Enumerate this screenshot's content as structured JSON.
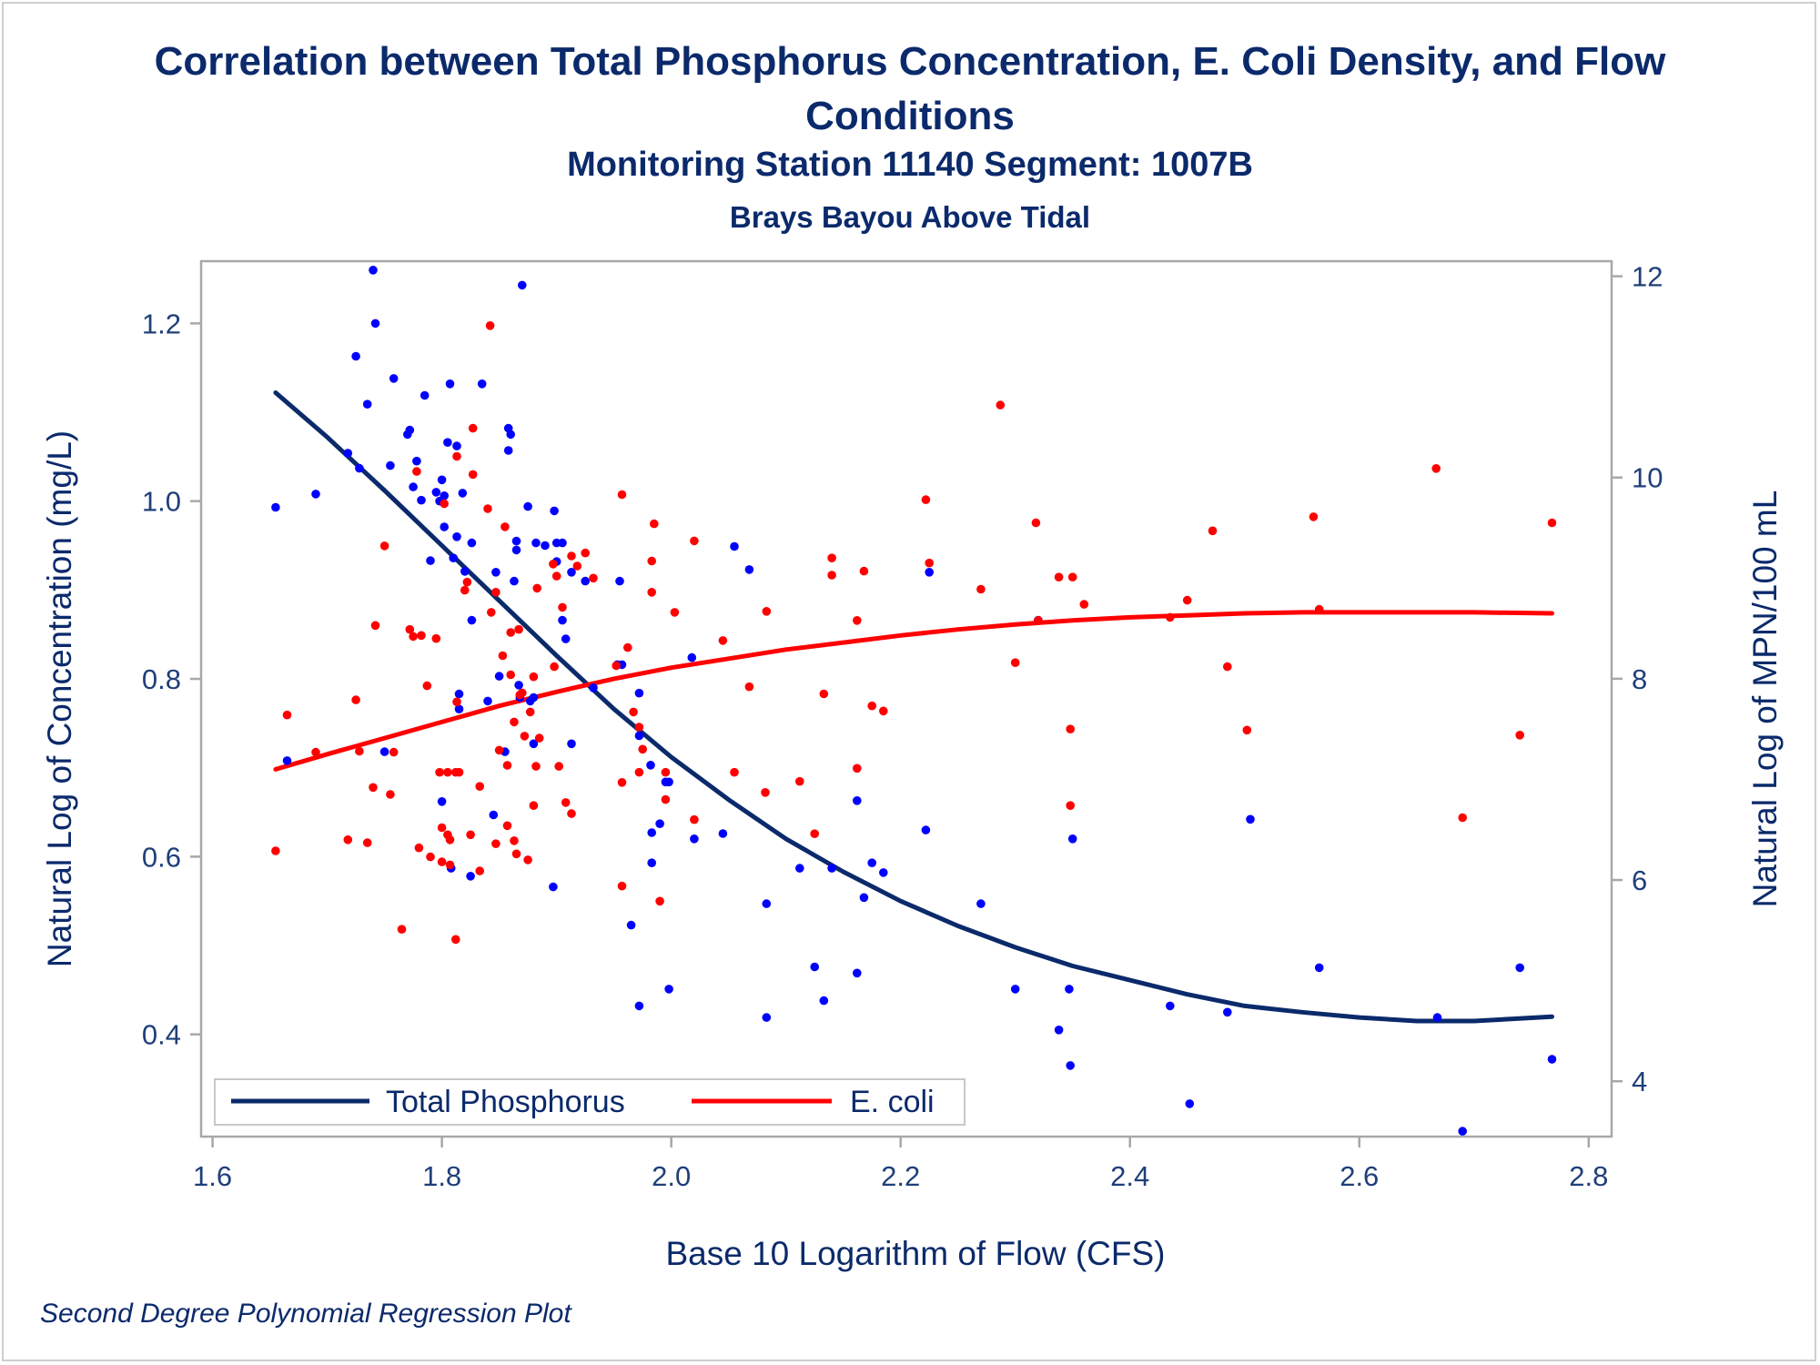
{
  "chart_data": {
    "type": "scatter",
    "title": "Correlation between Total Phosphorus Concentration, E. Coli Density, and Flow Conditions",
    "subtitle": "Monitoring Station 11140 Segment: 1007B",
    "subtitle2": "Brays Bayou Above Tidal",
    "xlabel": "Base 10 Logarithm of Flow (CFS)",
    "ylabel_left": "Natural Log of Concentration (mg/L)",
    "ylabel_right": "Natural Log of MPN/100 mL",
    "footnote": "Second Degree Polynomial Regression Plot",
    "xlim": [
      1.59,
      2.82
    ],
    "ylim_left": [
      0.285,
      1.27
    ],
    "ylim_right": [
      3.45,
      12.15
    ],
    "xticks": [
      1.6,
      1.8,
      2.0,
      2.2,
      2.4,
      2.6,
      2.8
    ],
    "xtick_labels": [
      "1.6",
      "1.8",
      "2.0",
      "2.2",
      "2.4",
      "2.6",
      "2.8"
    ],
    "yticks_left": [
      0.4,
      0.6,
      0.8,
      1.0,
      1.2
    ],
    "ytick_labels_left": [
      "0.4",
      "0.6",
      "0.8",
      "1.0",
      "1.2"
    ],
    "yticks_right": [
      4,
      6,
      8,
      10,
      12
    ],
    "ytick_labels_right": [
      "4",
      "6",
      "8",
      "10",
      "12"
    ],
    "grid": false,
    "legend_position": "bottom-left inside",
    "series": [
      {
        "name": "Total Phosphorus",
        "axis": "left",
        "color": "#0000ff",
        "fit_color": "#0b2a6b",
        "points": [
          [
            1.655,
            0.993
          ],
          [
            1.665,
            0.708
          ],
          [
            1.69,
            1.008
          ],
          [
            1.718,
            1.054
          ],
          [
            1.725,
            1.163
          ],
          [
            1.728,
            1.037
          ],
          [
            1.735,
            1.109
          ],
          [
            1.74,
            1.26
          ],
          [
            1.742,
            1.2
          ],
          [
            1.75,
            0.718
          ],
          [
            1.755,
            1.04
          ],
          [
            1.758,
            1.138
          ],
          [
            1.77,
            1.075
          ],
          [
            1.772,
            1.08
          ],
          [
            1.775,
            1.016
          ],
          [
            1.778,
            1.045
          ],
          [
            1.782,
            1.001
          ],
          [
            1.785,
            1.119
          ],
          [
            1.79,
            0.933
          ],
          [
            1.795,
            1.01
          ],
          [
            1.798,
            1.0
          ],
          [
            1.8,
            0.662
          ],
          [
            1.8,
            1.024
          ],
          [
            1.802,
            1.006
          ],
          [
            1.802,
            0.971
          ],
          [
            1.805,
            1.066
          ],
          [
            1.807,
            1.132
          ],
          [
            1.808,
            0.587
          ],
          [
            1.81,
            0.936
          ],
          [
            1.813,
            1.062
          ],
          [
            1.813,
            0.96
          ],
          [
            1.815,
            0.783
          ],
          [
            1.815,
            0.766
          ],
          [
            1.818,
            1.009
          ],
          [
            1.82,
            0.921
          ],
          [
            1.825,
            0.578
          ],
          [
            1.826,
            0.953
          ],
          [
            1.826,
            0.866
          ],
          [
            1.835,
            1.132
          ],
          [
            1.84,
            0.775
          ],
          [
            1.845,
            0.647
          ],
          [
            1.847,
            0.92
          ],
          [
            1.85,
            0.803
          ],
          [
            1.855,
            0.718
          ],
          [
            1.858,
            1.082
          ],
          [
            1.858,
            1.057
          ],
          [
            1.86,
            1.075
          ],
          [
            1.863,
            0.91
          ],
          [
            1.865,
            0.955
          ],
          [
            1.865,
            0.945
          ],
          [
            1.867,
            0.793
          ],
          [
            1.868,
            0.779
          ],
          [
            1.87,
            1.243
          ],
          [
            1.875,
            0.994
          ],
          [
            1.877,
            0.775
          ],
          [
            1.88,
            0.727
          ],
          [
            1.88,
            0.779
          ],
          [
            1.882,
            0.953
          ],
          [
            1.89,
            0.95
          ],
          [
            1.897,
            0.566
          ],
          [
            1.898,
            0.989
          ],
          [
            1.9,
            0.953
          ],
          [
            1.9,
            0.932
          ],
          [
            1.905,
            0.953
          ],
          [
            1.905,
            0.866
          ],
          [
            1.908,
            0.845
          ],
          [
            1.913,
            0.92
          ],
          [
            1.913,
            0.727
          ],
          [
            1.925,
            0.91
          ],
          [
            1.932,
            0.79
          ],
          [
            1.953,
            0.816
          ],
          [
            1.955,
            0.91
          ],
          [
            1.957,
            0.816
          ],
          [
            1.965,
            0.523
          ],
          [
            1.972,
            0.784
          ],
          [
            1.972,
            0.736
          ],
          [
            1.972,
            0.432
          ],
          [
            1.982,
            0.703
          ],
          [
            1.983,
            0.593
          ],
          [
            1.983,
            0.627
          ],
          [
            1.99,
            0.637
          ],
          [
            1.995,
            0.684
          ],
          [
            1.998,
            0.684
          ],
          [
            1.998,
            0.451
          ],
          [
            2.018,
            0.824
          ],
          [
            2.02,
            0.62
          ],
          [
            2.045,
            0.626
          ],
          [
            2.055,
            0.949
          ],
          [
            2.068,
            0.923
          ],
          [
            2.083,
            0.547
          ],
          [
            2.083,
            0.419
          ],
          [
            2.112,
            0.587
          ],
          [
            2.125,
            0.476
          ],
          [
            2.133,
            0.438
          ],
          [
            2.14,
            0.587
          ],
          [
            2.162,
            0.663
          ],
          [
            2.162,
            0.469
          ],
          [
            2.168,
            0.554
          ],
          [
            2.175,
            0.593
          ],
          [
            2.185,
            0.582
          ],
          [
            2.222,
            0.63
          ],
          [
            2.225,
            0.92
          ],
          [
            2.27,
            0.547
          ],
          [
            2.3,
            0.451
          ],
          [
            2.32,
            0.866
          ],
          [
            2.338,
            0.405
          ],
          [
            2.347,
            0.451
          ],
          [
            2.348,
            0.365
          ],
          [
            2.35,
            0.62
          ],
          [
            2.435,
            0.432
          ],
          [
            2.452,
            0.322
          ],
          [
            2.485,
            0.425
          ],
          [
            2.505,
            0.642
          ],
          [
            2.565,
            0.475
          ],
          [
            2.668,
            0.419
          ],
          [
            2.69,
            0.291
          ],
          [
            2.74,
            0.475
          ],
          [
            2.768,
            0.372
          ]
        ],
        "fit": {
          "x": [
            1.655,
            1.7,
            1.75,
            1.8,
            1.85,
            1.9,
            1.95,
            2.0,
            2.05,
            2.1,
            2.15,
            2.2,
            2.25,
            2.3,
            2.35,
            2.4,
            2.45,
            2.5,
            2.55,
            2.6,
            2.65,
            2.7,
            2.768
          ],
          "y": [
            1.122,
            1.072,
            1.012,
            0.95,
            0.888,
            0.826,
            0.766,
            0.712,
            0.664,
            0.62,
            0.583,
            0.55,
            0.522,
            0.498,
            0.477,
            0.461,
            0.445,
            0.432,
            0.425,
            0.419,
            0.415,
            0.415,
            0.42
          ]
        }
      },
      {
        "name": "E. coli",
        "axis": "right",
        "color": "#ff0000",
        "fit_color": "#ff0000",
        "points": [
          [
            1.655,
            6.29
          ],
          [
            1.665,
            7.64
          ],
          [
            1.69,
            7.27
          ],
          [
            1.718,
            6.4
          ],
          [
            1.725,
            7.79
          ],
          [
            1.728,
            7.28
          ],
          [
            1.735,
            6.37
          ],
          [
            1.74,
            6.92
          ],
          [
            1.742,
            8.53
          ],
          [
            1.75,
            9.32
          ],
          [
            1.755,
            6.85
          ],
          [
            1.758,
            7.27
          ],
          [
            1.765,
            5.51
          ],
          [
            1.772,
            8.49
          ],
          [
            1.775,
            8.42
          ],
          [
            1.778,
            10.06
          ],
          [
            1.78,
            6.32
          ],
          [
            1.782,
            8.43
          ],
          [
            1.787,
            7.93
          ],
          [
            1.79,
            6.23
          ],
          [
            1.795,
            8.4
          ],
          [
            1.798,
            7.07
          ],
          [
            1.8,
            6.18
          ],
          [
            1.8,
            6.52
          ],
          [
            1.802,
            9.74
          ],
          [
            1.805,
            6.45
          ],
          [
            1.805,
            7.07
          ],
          [
            1.807,
            6.4
          ],
          [
            1.807,
            6.15
          ],
          [
            1.812,
            7.07
          ],
          [
            1.812,
            5.41
          ],
          [
            1.813,
            10.21
          ],
          [
            1.813,
            7.77
          ],
          [
            1.815,
            7.07
          ],
          [
            1.82,
            8.88
          ],
          [
            1.822,
            8.96
          ],
          [
            1.825,
            6.45
          ],
          [
            1.827,
            10.49
          ],
          [
            1.827,
            10.03
          ],
          [
            1.833,
            6.93
          ],
          [
            1.833,
            6.09
          ],
          [
            1.84,
            9.69
          ],
          [
            1.842,
            11.51
          ],
          [
            1.843,
            8.66
          ],
          [
            1.847,
            8.86
          ],
          [
            1.847,
            6.36
          ],
          [
            1.85,
            7.29
          ],
          [
            1.853,
            8.23
          ],
          [
            1.855,
            9.51
          ],
          [
            1.857,
            7.14
          ],
          [
            1.857,
            6.54
          ],
          [
            1.86,
            8.46
          ],
          [
            1.86,
            8.04
          ],
          [
            1.863,
            7.57
          ],
          [
            1.863,
            6.39
          ],
          [
            1.865,
            6.26
          ],
          [
            1.867,
            8.49
          ],
          [
            1.868,
            7.84
          ],
          [
            1.87,
            7.86
          ],
          [
            1.872,
            7.43
          ],
          [
            1.875,
            6.2
          ],
          [
            1.877,
            7.67
          ],
          [
            1.88,
            8.02
          ],
          [
            1.88,
            6.74
          ],
          [
            1.882,
            7.13
          ],
          [
            1.883,
            8.9
          ],
          [
            1.885,
            7.41
          ],
          [
            1.897,
            9.14
          ],
          [
            1.898,
            8.12
          ],
          [
            1.9,
            9.02
          ],
          [
            1.902,
            7.13
          ],
          [
            1.905,
            8.71
          ],
          [
            1.908,
            6.77
          ],
          [
            1.913,
            9.22
          ],
          [
            1.913,
            6.66
          ],
          [
            1.918,
            9.12
          ],
          [
            1.925,
            9.25
          ],
          [
            1.932,
            9.0
          ],
          [
            1.952,
            8.13
          ],
          [
            1.957,
            9.83
          ],
          [
            1.957,
            6.97
          ],
          [
            1.957,
            5.94
          ],
          [
            1.962,
            8.31
          ],
          [
            1.967,
            7.67
          ],
          [
            1.972,
            7.52
          ],
          [
            1.972,
            7.07
          ],
          [
            1.975,
            7.3
          ],
          [
            1.983,
            9.17
          ],
          [
            1.983,
            8.86
          ],
          [
            1.985,
            9.54
          ],
          [
            1.99,
            5.79
          ],
          [
            1.995,
            6.8
          ],
          [
            1.995,
            7.07
          ],
          [
            2.003,
            8.66
          ],
          [
            2.02,
            9.37
          ],
          [
            2.02,
            6.6
          ],
          [
            2.045,
            8.38
          ],
          [
            2.055,
            7.07
          ],
          [
            2.068,
            7.92
          ],
          [
            2.082,
            6.87
          ],
          [
            2.083,
            8.67
          ],
          [
            2.112,
            6.98
          ],
          [
            2.125,
            6.46
          ],
          [
            2.133,
            7.85
          ],
          [
            2.14,
            9.2
          ],
          [
            2.14,
            9.03
          ],
          [
            2.162,
            8.58
          ],
          [
            2.162,
            7.11
          ],
          [
            2.168,
            9.07
          ],
          [
            2.175,
            7.73
          ],
          [
            2.185,
            7.68
          ],
          [
            2.222,
            9.78
          ],
          [
            2.225,
            9.15
          ],
          [
            2.27,
            8.89
          ],
          [
            2.287,
            10.72
          ],
          [
            2.3,
            8.16
          ],
          [
            2.318,
            9.55
          ],
          [
            2.32,
            8.58
          ],
          [
            2.338,
            9.01
          ],
          [
            2.348,
            7.5
          ],
          [
            2.348,
            6.74
          ],
          [
            2.35,
            9.01
          ],
          [
            2.36,
            8.74
          ],
          [
            2.435,
            8.61
          ],
          [
            2.45,
            8.78
          ],
          [
            2.472,
            9.47
          ],
          [
            2.485,
            8.12
          ],
          [
            2.502,
            7.49
          ],
          [
            2.56,
            9.61
          ],
          [
            2.565,
            8.69
          ],
          [
            2.667,
            10.09
          ],
          [
            2.69,
            6.62
          ],
          [
            2.74,
            7.44
          ],
          [
            2.768,
            9.55
          ]
        ],
        "fit": {
          "x": [
            1.655,
            1.7,
            1.75,
            1.8,
            1.85,
            1.9,
            1.95,
            2.0,
            2.05,
            2.1,
            2.15,
            2.2,
            2.25,
            2.3,
            2.35,
            2.4,
            2.45,
            2.5,
            2.55,
            2.6,
            2.65,
            2.7,
            2.768
          ],
          "y": [
            7.1,
            7.25,
            7.41,
            7.57,
            7.73,
            7.87,
            8.0,
            8.11,
            8.2,
            8.29,
            8.36,
            8.43,
            8.49,
            8.54,
            8.58,
            8.61,
            8.63,
            8.65,
            8.66,
            8.66,
            8.66,
            8.66,
            8.65
          ]
        }
      }
    ]
  },
  "legend": {
    "items": [
      {
        "label": "Total Phosphorus",
        "color": "#0b2a6b"
      },
      {
        "label": "E. coli",
        "color": "#ff0000"
      }
    ]
  }
}
